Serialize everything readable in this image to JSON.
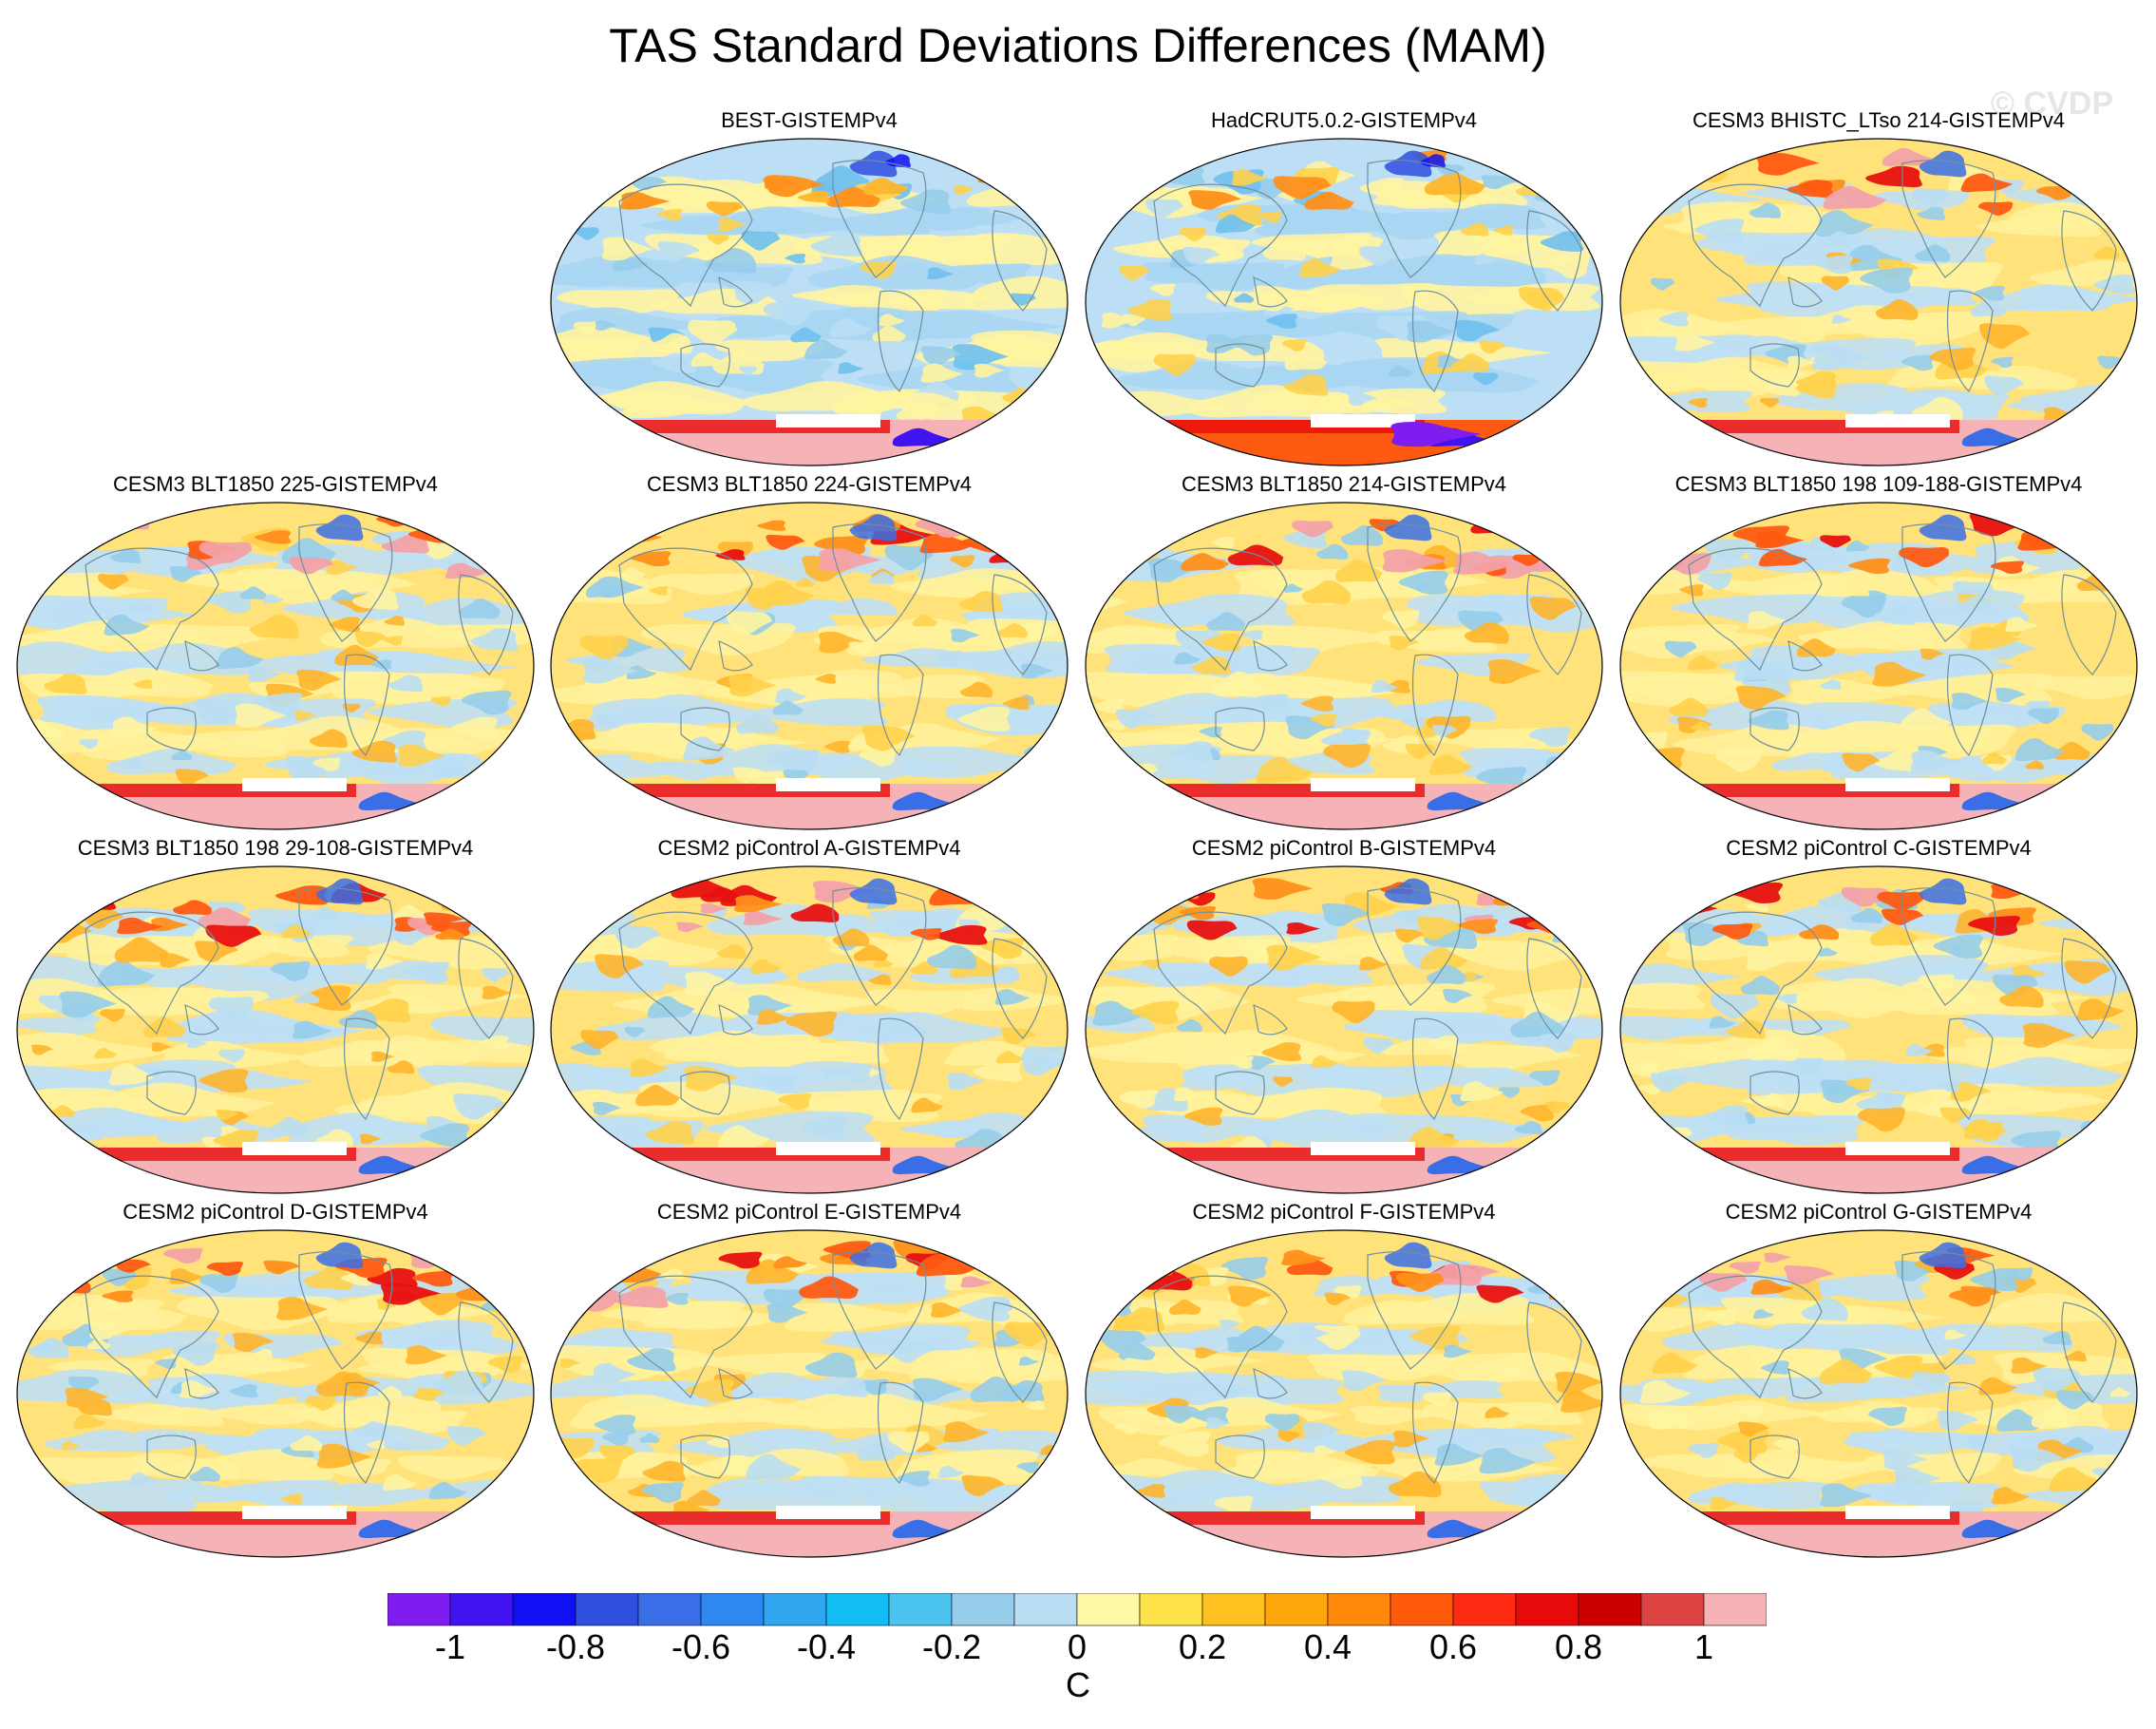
{
  "title": "TAS Standard Deviations Differences (MAM)",
  "watermark": "© CVDP",
  "panels": [
    {
      "title": "BEST-GISTEMPv4",
      "style": "obs1"
    },
    {
      "title": "HadCRUT5.0.2-GISTEMPv4",
      "style": "obs2"
    },
    {
      "title": "CESM3 BHISTC_LTso 214-GISTEMPv4",
      "style": "model"
    },
    {
      "title": "CESM3 BLT1850 225-GISTEMPv4",
      "style": "model"
    },
    {
      "title": "CESM3 BLT1850 224-GISTEMPv4",
      "style": "model"
    },
    {
      "title": "CESM3 BLT1850 214-GISTEMPv4",
      "style": "model"
    },
    {
      "title": "CESM3 BLT1850 198 109-188-GISTEMPv4",
      "style": "model"
    },
    {
      "title": "CESM3 BLT1850 198 29-108-GISTEMPv4",
      "style": "model"
    },
    {
      "title": "CESM2 piControl A-GISTEMPv4",
      "style": "model"
    },
    {
      "title": "CESM2 piControl B-GISTEMPv4",
      "style": "model"
    },
    {
      "title": "CESM2 piControl C-GISTEMPv4",
      "style": "model"
    },
    {
      "title": "CESM2 piControl D-GISTEMPv4",
      "style": "model"
    },
    {
      "title": "CESM2 piControl E-GISTEMPv4",
      "style": "model"
    },
    {
      "title": "CESM2 piControl F-GISTEMPv4",
      "style": "model"
    },
    {
      "title": "CESM2 piControl G-GISTEMPv4",
      "style": "model"
    }
  ],
  "colorbar": {
    "colors": [
      "#7f1cf0",
      "#4014f0",
      "#1010f5",
      "#2f4fde",
      "#3a6ee6",
      "#2e88f2",
      "#2ea6f0",
      "#12bcf5",
      "#4cc4f0",
      "#96cdea",
      "#b9def4",
      "#fff9a5",
      "#ffe34a",
      "#ffc11f",
      "#ffa60a",
      "#ff880a",
      "#ff5a0a",
      "#ff2a12",
      "#e80a0a",
      "#cc0000",
      "#dd4444",
      "#f5b3b8"
    ],
    "tick_labels": [
      "-1",
      "-0.8",
      "-0.6",
      "-0.4",
      "-0.2",
      "0",
      "0.2",
      "0.4",
      "0.6",
      "0.8",
      "1"
    ],
    "units": "C"
  }
}
